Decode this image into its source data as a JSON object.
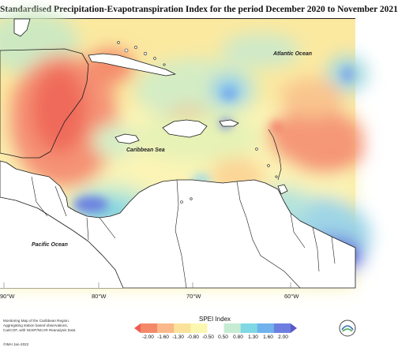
{
  "title": "Standardised Precipitation-Evapotranspiration Index for the period December 2020 to November 2021",
  "places": {
    "atlantic": "Atlantic Ocean",
    "caribbean": "Caribbean Sea",
    "pacific": "Pacific Ocean"
  },
  "longitude_labels": [
    "90°W",
    "80°W",
    "70°W",
    "60°W"
  ],
  "footer_note": [
    "Monitoring Map of the Caribbean Region.",
    "Aggregating station based observations,",
    "CariCOF, with NCEP/NCAR Reanalysis Data"
  ],
  "copyright": "©IMH Jan-2022",
  "legend": {
    "title": "SPEI Index",
    "ticks": [
      "-2.00",
      "-1.60",
      "-1.30",
      "-0.80",
      "-0.50",
      "0.50",
      "0.80",
      "1.30",
      "1.60",
      "2.00"
    ],
    "colors": [
      "#ee5c52",
      "#f4896a",
      "#f9b98a",
      "#fbe29a",
      "#fbf7b0",
      "#ffffff",
      "#c6ecd4",
      "#7fd8e4",
      "#6fb2ec",
      "#6c7fe0",
      "#5d55c8"
    ]
  },
  "logo": "cimh-logo"
}
